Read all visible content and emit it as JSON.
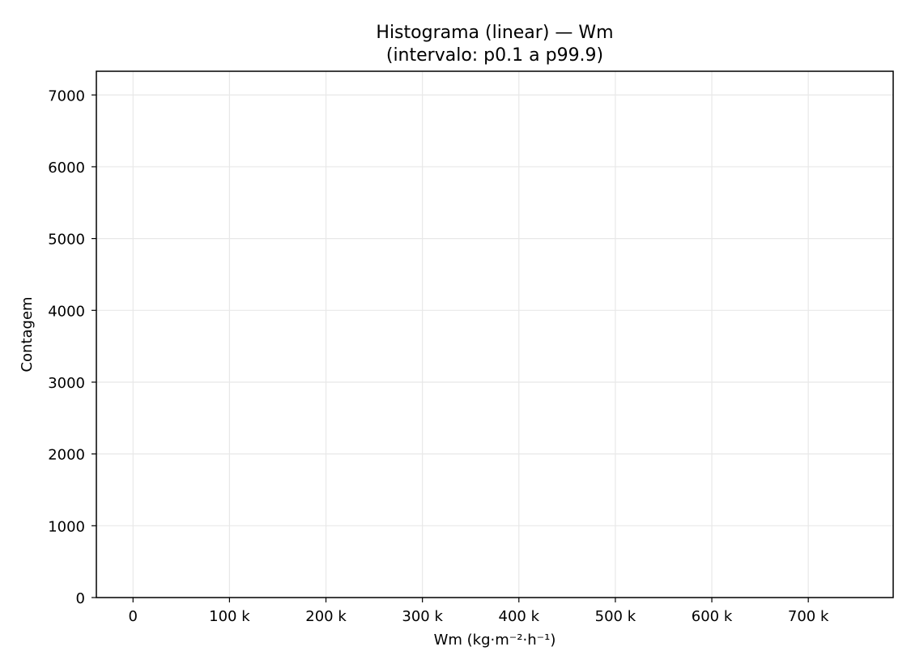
{
  "chart_data": {
    "type": "bar",
    "title": "Histograma (linear) — Wm",
    "subtitle": "(intervalo: p0.1 a p99.9)",
    "xlabel": "Wm (kg·m⁻²·h⁻¹)",
    "ylabel": "Contagem",
    "xlim": [
      -38000,
      788000
    ],
    "ylim": [
      0,
      7330
    ],
    "x_ticks": [
      0,
      100000,
      200000,
      300000,
      400000,
      500000,
      600000,
      700000
    ],
    "x_tick_labels": [
      "0",
      "100 k",
      "200 k",
      "300 k",
      "400 k",
      "500 k",
      "600 k",
      "700 k"
    ],
    "y_ticks": [
      0,
      1000,
      2000,
      3000,
      4000,
      5000,
      6000,
      7000
    ],
    "y_tick_labels": [
      "0",
      "1000",
      "2000",
      "3000",
      "4000",
      "5000",
      "6000",
      "7000"
    ],
    "grid": true,
    "bins": [],
    "counts": []
  },
  "colors": {
    "grid": "#e8e8e8",
    "axes": "#000000",
    "background": "#ffffff"
  }
}
